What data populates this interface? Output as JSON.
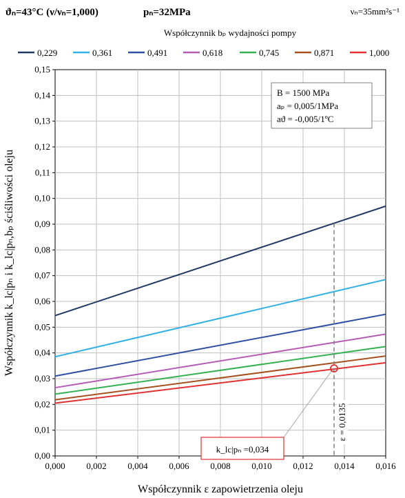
{
  "header": {
    "left_title": "ϑₙ=43°C (ν/νₙ=1,000)",
    "mid_title": "pₙ=32MPa",
    "right_title": "νₙ=35mm²s⁻¹"
  },
  "chart_data": {
    "type": "line",
    "legend_title": "Współczynnik bₚ wydajności pompy",
    "legend_position": "top",
    "xlabel": "Współczynnik ε zapowietrzenia oleju",
    "ylabel": "Współczynnik k_lc|pₙ i k_lc|pₙ,bₚ ściśliwości oleju",
    "xlim": [
      0,
      0.016
    ],
    "ylim": [
      0,
      0.15
    ],
    "grid": true,
    "x_ticks": [
      "0,000",
      "0,002",
      "0,004",
      "0,006",
      "0,008",
      "0,010",
      "0,012",
      "0,014",
      "0,016"
    ],
    "y_ticks": [
      "0,00",
      "0,01",
      "0,02",
      "0,03",
      "0,04",
      "0,05",
      "0,06",
      "0,07",
      "0,08",
      "0,09",
      "0,10",
      "0,11",
      "0,12",
      "0,13",
      "0,14",
      "0,15"
    ],
    "x": [
      0,
      0.016
    ],
    "series": [
      {
        "name": "0,229",
        "color": "#1f3864",
        "values": [
          0.0545,
          0.097
        ]
      },
      {
        "name": "0,361",
        "color": "#33b0e6",
        "values": [
          0.0385,
          0.0685
        ]
      },
      {
        "name": "0,491",
        "color": "#2e4fa3",
        "values": [
          0.031,
          0.055
        ]
      },
      {
        "name": "0,618",
        "color": "#b45cb4",
        "values": [
          0.0265,
          0.0473
        ]
      },
      {
        "name": "0,745",
        "color": "#33b050",
        "values": [
          0.024,
          0.0425
        ]
      },
      {
        "name": "0,871",
        "color": "#a6501e",
        "values": [
          0.0218,
          0.0388
        ]
      },
      {
        "name": "1,000",
        "color": "#e03030",
        "values": [
          0.0205,
          0.0362
        ]
      }
    ],
    "params_box": {
      "B": "B = 1500 MPa",
      "ap": "aₚ = 0,005/1MPa",
      "at": "aϑ = -0,005/1ºC"
    },
    "marker": {
      "x": 0.0135,
      "y": 0.034,
      "color": "#e03030",
      "callout": "k_lc|pₙ =0,034",
      "vline_label": "ε = 0,0135"
    }
  }
}
